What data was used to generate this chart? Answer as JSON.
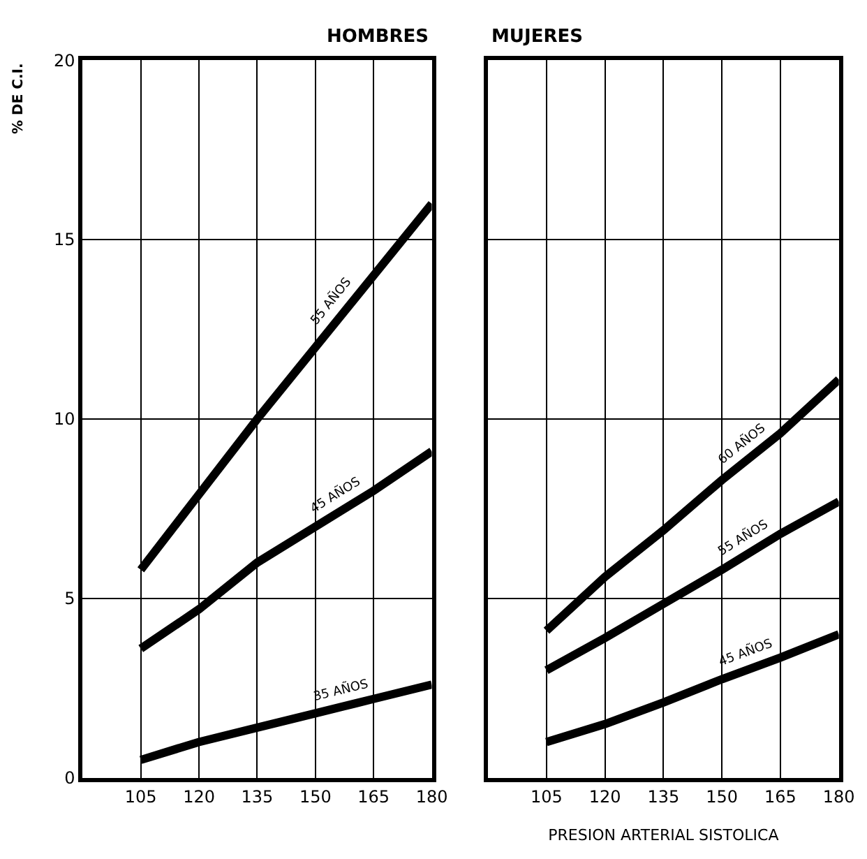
{
  "chart_data": [
    {
      "type": "line",
      "title": "HOMBRES",
      "ylabel": "% DE C.I.",
      "x": [
        105,
        120,
        135,
        150,
        165,
        180
      ],
      "xlim": [
        90,
        180
      ],
      "xticks": [
        105,
        120,
        135,
        150,
        165,
        180
      ],
      "ylim": [
        0,
        20
      ],
      "yticks": [
        0,
        5,
        10,
        15,
        20
      ],
      "grid": true,
      "legend": false,
      "marker": "none",
      "line_style": "solid",
      "series": [
        {
          "name": "55 AÑOS",
          "color": "#000000",
          "values": [
            5.8,
            7.9,
            10,
            12,
            14,
            16
          ]
        },
        {
          "name": "45 AÑOS",
          "color": "#000000",
          "values": [
            3.6,
            4.7,
            6,
            7,
            8,
            9.1
          ]
        },
        {
          "name": "35 AÑOS",
          "color": "#000000",
          "values": [
            0.5,
            1,
            1.4,
            1.8,
            2.2,
            2.6
          ]
        }
      ]
    },
    {
      "type": "line",
      "title": "MUJERES",
      "xlabel": "PRESION ARTERIAL SISTOLICA",
      "x": [
        105,
        120,
        135,
        150,
        165,
        180
      ],
      "xlim": [
        90,
        180
      ],
      "xticks": [
        105,
        120,
        135,
        150,
        165,
        180
      ],
      "ylim": [
        0,
        20
      ],
      "yticks": [
        0,
        5,
        10,
        15,
        20
      ],
      "tick_labels": "x",
      "grid": true,
      "legend": false,
      "marker": "none",
      "line_style": "solid",
      "series": [
        {
          "name": "60 AÑOS",
          "color": "#000000",
          "values": [
            4.1,
            5.6,
            6.9,
            8.3,
            9.6,
            11.1
          ]
        },
        {
          "name": "55 AÑOS",
          "color": "#000000",
          "values": [
            3,
            3.9,
            4.85,
            5.8,
            6.8,
            7.7
          ]
        },
        {
          "name": "45 AÑOS",
          "color": "#000000",
          "values": [
            1,
            1.5,
            2.1,
            2.75,
            3.35,
            4
          ]
        }
      ]
    }
  ]
}
